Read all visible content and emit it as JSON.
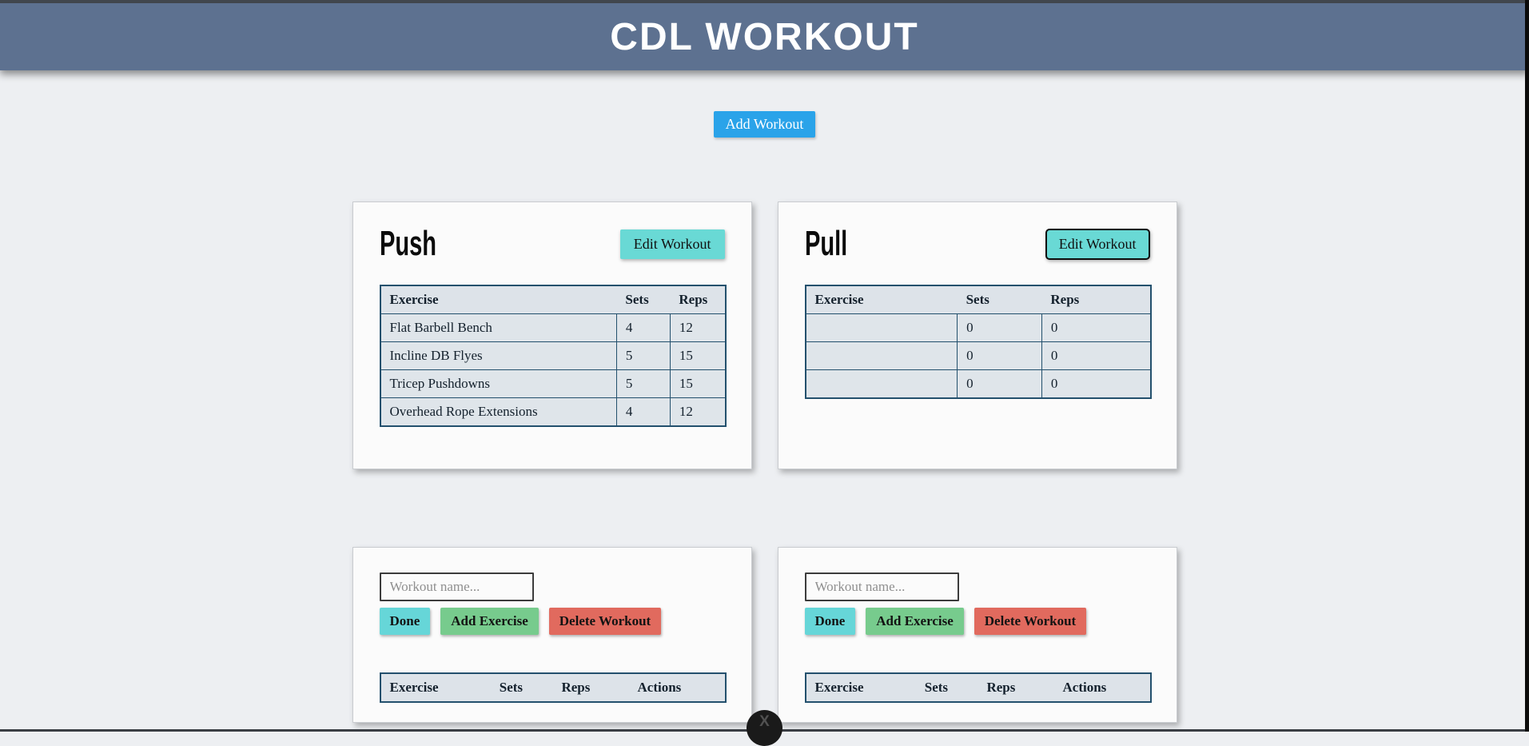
{
  "header": {
    "title": "CDL WORKOUT"
  },
  "toolbar": {
    "add_workout_label": "Add Workout"
  },
  "workouts": [
    {
      "name": "Push",
      "edit_button_label": "Edit Workout",
      "table": {
        "headers": [
          "Exercise",
          "Sets",
          "Reps"
        ],
        "rows": [
          [
            "Flat Barbell Bench",
            "4",
            "12"
          ],
          [
            "Incline DB Flyes",
            "5",
            "15"
          ],
          [
            "Tricep Pushdowns",
            "5",
            "15"
          ],
          [
            "Overhead Rope Extensions",
            "4",
            "12"
          ]
        ]
      }
    },
    {
      "name": "Pull",
      "edit_button_label": "Edit Workout",
      "table": {
        "headers": [
          "Exercise",
          "Sets",
          "Reps"
        ],
        "rows": [
          [
            "",
            "0",
            "0"
          ],
          [
            "",
            "0",
            "0"
          ],
          [
            "",
            "0",
            "0"
          ]
        ]
      }
    }
  ],
  "editors": [
    {
      "name_placeholder": "Workout name...",
      "name_value": "",
      "done_label": "Done",
      "add_exercise_label": "Add Exercise",
      "delete_workout_label": "Delete Workout",
      "table_headers": [
        "Exercise",
        "Sets",
        "Reps",
        "Actions"
      ]
    },
    {
      "name_placeholder": "Workout name...",
      "name_value": "",
      "done_label": "Done",
      "add_exercise_label": "Add Exercise",
      "delete_workout_label": "Delete Workout",
      "table_headers": [
        "Exercise",
        "Sets",
        "Reps",
        "Actions"
      ]
    }
  ],
  "floating": {
    "scroll_button_glyph": "X"
  },
  "colors": {
    "header_bg": "#5d7190",
    "page_bg": "#edeff2",
    "accent_blue": "#2aa3e9",
    "accent_teal": "#69d9d5",
    "accent_green": "#77cb8d",
    "accent_red": "#e16a5e",
    "table_border": "#23506d",
    "table_cell_bg": "#dfe5ea"
  }
}
